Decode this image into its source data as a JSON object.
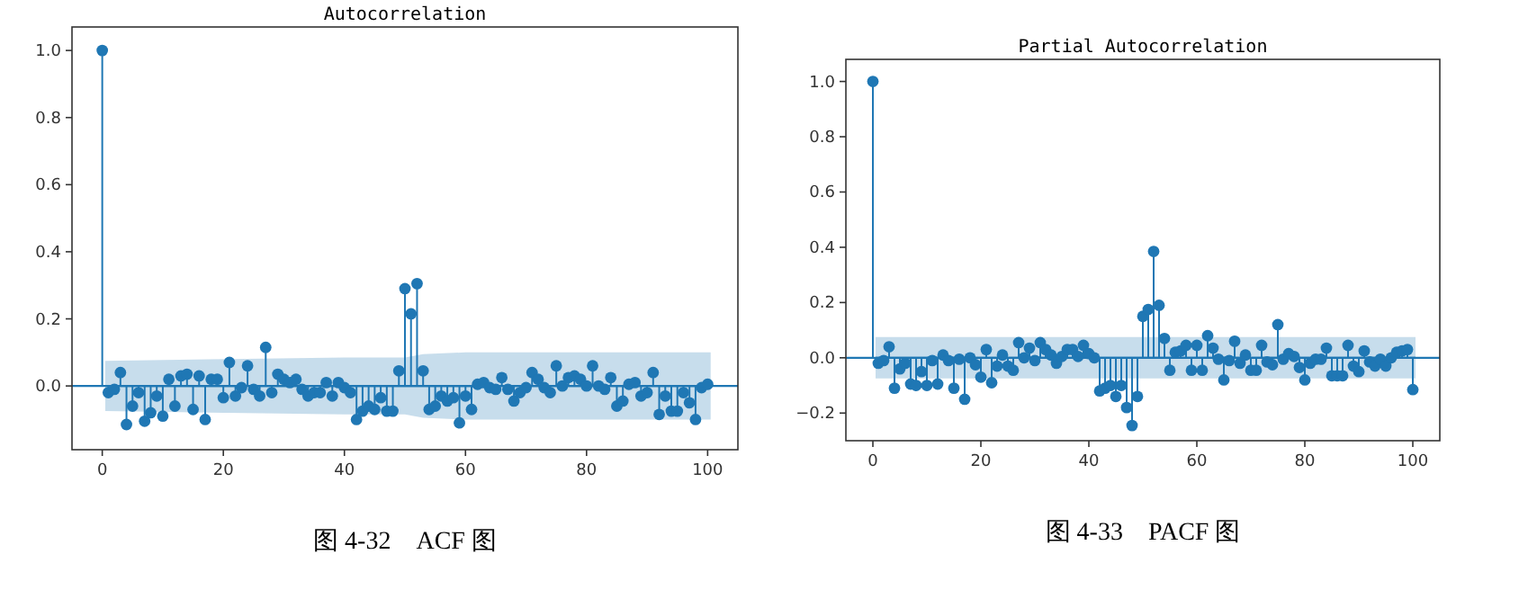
{
  "chart_data": [
    {
      "type": "lollipop",
      "title": "Autocorrelation",
      "x": [
        0,
        1,
        2,
        3,
        4,
        5,
        6,
        7,
        8,
        9,
        10,
        11,
        12,
        13,
        14,
        15,
        16,
        17,
        18,
        19,
        20,
        21,
        22,
        23,
        24,
        25,
        26,
        27,
        28,
        29,
        30,
        31,
        32,
        33,
        34,
        35,
        36,
        37,
        38,
        39,
        40,
        41,
        42,
        43,
        44,
        45,
        46,
        47,
        48,
        49,
        50,
        51,
        52,
        53,
        54,
        55,
        56,
        57,
        58,
        59,
        60,
        61,
        62,
        63,
        64,
        65,
        66,
        67,
        68,
        69,
        70,
        71,
        72,
        73,
        74,
        75,
        76,
        77,
        78,
        79,
        80,
        81,
        82,
        83,
        84,
        85,
        86,
        87,
        88,
        89,
        90,
        91,
        92,
        93,
        94,
        95,
        96,
        97,
        98,
        99,
        100
      ],
      "series": [
        {
          "type": "line",
          "marker": "none",
          "color": "#1f77b4",
          "x": [
            0.5,
            20,
            40,
            50,
            53,
            60,
            80,
            100.5
          ],
          "values": [
            0,
            0,
            0,
            0,
            0,
            0,
            0,
            0
          ],
          "lower": [
            -0.075,
            -0.08,
            -0.085,
            -0.085,
            -0.095,
            -0.1,
            -0.1,
            -0.1
          ],
          "upper": [
            0.075,
            0.08,
            0.085,
            0.085,
            0.095,
            0.1,
            0.1,
            0.1
          ]
        },
        {
          "type": "lollipop",
          "marker": "circle",
          "color": "#1f77b4",
          "values": [
            1.0,
            -0.02,
            -0.01,
            0.04,
            -0.115,
            -0.06,
            -0.02,
            -0.105,
            -0.08,
            -0.03,
            -0.09,
            0.02,
            -0.06,
            0.03,
            0.035,
            -0.07,
            0.03,
            -0.1,
            0.02,
            0.02,
            -0.035,
            0.07,
            -0.03,
            -0.005,
            0.06,
            -0.01,
            -0.03,
            0.115,
            -0.02,
            0.035,
            0.02,
            0.01,
            0.02,
            -0.01,
            -0.03,
            -0.02,
            -0.02,
            0.01,
            -0.03,
            0.01,
            -0.005,
            -0.02,
            -0.1,
            -0.075,
            -0.06,
            -0.07,
            -0.035,
            -0.075,
            -0.075,
            0.045,
            0.29,
            0.215,
            0.305,
            0.045,
            -0.07,
            -0.06,
            -0.03,
            -0.045,
            -0.035,
            -0.11,
            -0.03,
            -0.07,
            0.005,
            0.01,
            -0.005,
            -0.01,
            0.025,
            -0.01,
            -0.045,
            -0.02,
            -0.005,
            0.04,
            0.02,
            -0.005,
            -0.02,
            0.06,
            0,
            0.025,
            0.03,
            0.02,
            0,
            0.06,
            0,
            -0.01,
            0.025,
            -0.06,
            -0.045,
            0.005,
            0.01,
            -0.03,
            -0.02,
            0.04,
            -0.085,
            -0.03,
            -0.075,
            -0.075,
            -0.02,
            -0.05,
            -0.1,
            -0.005,
            0.005
          ]
        }
      ],
      "xlim": [
        -5,
        105
      ],
      "ylim": [
        -0.19,
        1.07
      ],
      "xticks": [
        0,
        20,
        40,
        60,
        80,
        100
      ],
      "yticks": [
        {
          "value": 0,
          "label": "0.0"
        },
        {
          "value": 0.2,
          "label": "0.2"
        },
        {
          "value": 0.4,
          "label": "0.4"
        },
        {
          "value": 0.6,
          "label": "0.6"
        },
        {
          "value": 0.8,
          "label": "0.8"
        },
        {
          "value": 1,
          "label": "1.0"
        }
      ],
      "ref_lines": [
        {
          "axis": "y",
          "value": 0,
          "color": "#1f77b4"
        }
      ],
      "annotations": [
        "图 4-32　ACF 图"
      ]
    },
    {
      "type": "lollipop",
      "title": "Partial Autocorrelation",
      "x": [
        0,
        1,
        2,
        3,
        4,
        5,
        6,
        7,
        8,
        9,
        10,
        11,
        12,
        13,
        14,
        15,
        16,
        17,
        18,
        19,
        20,
        21,
        22,
        23,
        24,
        25,
        26,
        27,
        28,
        29,
        30,
        31,
        32,
        33,
        34,
        35,
        36,
        37,
        38,
        39,
        40,
        41,
        42,
        43,
        44,
        45,
        46,
        47,
        48,
        49,
        50,
        51,
        52,
        53,
        54,
        55,
        56,
        57,
        58,
        59,
        60,
        61,
        62,
        63,
        64,
        65,
        66,
        67,
        68,
        69,
        70,
        71,
        72,
        73,
        74,
        75,
        76,
        77,
        78,
        79,
        80,
        81,
        82,
        83,
        84,
        85,
        86,
        87,
        88,
        89,
        90,
        91,
        92,
        93,
        94,
        95,
        96,
        97,
        98,
        99,
        100
      ],
      "series": [
        {
          "type": "line",
          "marker": "none",
          "color": "#1f77b4",
          "x": [
            0.5,
            100.5
          ],
          "values": [
            0,
            0
          ],
          "lower": [
            -0.075,
            -0.075
          ],
          "upper": [
            0.075,
            0.075
          ]
        },
        {
          "type": "lollipop",
          "marker": "circle",
          "color": "#1f77b4",
          "values": [
            1.0,
            -0.02,
            -0.01,
            0.04,
            -0.11,
            -0.04,
            -0.02,
            -0.095,
            -0.1,
            -0.05,
            -0.1,
            -0.01,
            -0.095,
            0.01,
            -0.01,
            -0.11,
            -0.005,
            -0.15,
            0,
            -0.025,
            -0.07,
            0.03,
            -0.09,
            -0.03,
            0.01,
            -0.03,
            -0.045,
            0.055,
            0,
            0.035,
            -0.01,
            0.055,
            0.03,
            0.01,
            -0.02,
            0.005,
            0.03,
            0.03,
            0.005,
            0.045,
            0.015,
            0,
            -0.12,
            -0.11,
            -0.1,
            -0.14,
            -0.1,
            -0.18,
            -0.245,
            -0.14,
            0.15,
            0.175,
            0.385,
            0.19,
            0.07,
            -0.045,
            0.02,
            0.025,
            0.045,
            -0.045,
            0.045,
            -0.045,
            0.08,
            0.035,
            -0.005,
            -0.08,
            -0.01,
            0.06,
            -0.02,
            0.01,
            -0.045,
            -0.045,
            0.045,
            -0.015,
            -0.025,
            0.12,
            -0.005,
            0.015,
            0.005,
            -0.035,
            -0.08,
            -0.02,
            -0.005,
            -0.005,
            0.035,
            -0.065,
            -0.065,
            -0.065,
            0.045,
            -0.03,
            -0.05,
            0.025,
            -0.015,
            -0.03,
            -0.005,
            -0.03,
            0,
            0.02,
            0.025,
            0.03,
            -0.115
          ]
        }
      ],
      "xlim": [
        -5,
        105
      ],
      "ylim": [
        -0.3,
        1.08
      ],
      "xticks": [
        0,
        20,
        40,
        60,
        80,
        100
      ],
      "yticks": [
        {
          "value": -0.2,
          "label": "−0.2"
        },
        {
          "value": 0,
          "label": "0.0"
        },
        {
          "value": 0.2,
          "label": "0.2"
        },
        {
          "value": 0.4,
          "label": "0.4"
        },
        {
          "value": 0.6,
          "label": "0.6"
        },
        {
          "value": 0.8,
          "label": "0.8"
        },
        {
          "value": 1,
          "label": "1.0"
        }
      ],
      "ref_lines": [
        {
          "axis": "y",
          "value": 0,
          "color": "#1f77b4"
        }
      ],
      "annotations": [
        "图 4-33　PACF 图"
      ]
    }
  ]
}
